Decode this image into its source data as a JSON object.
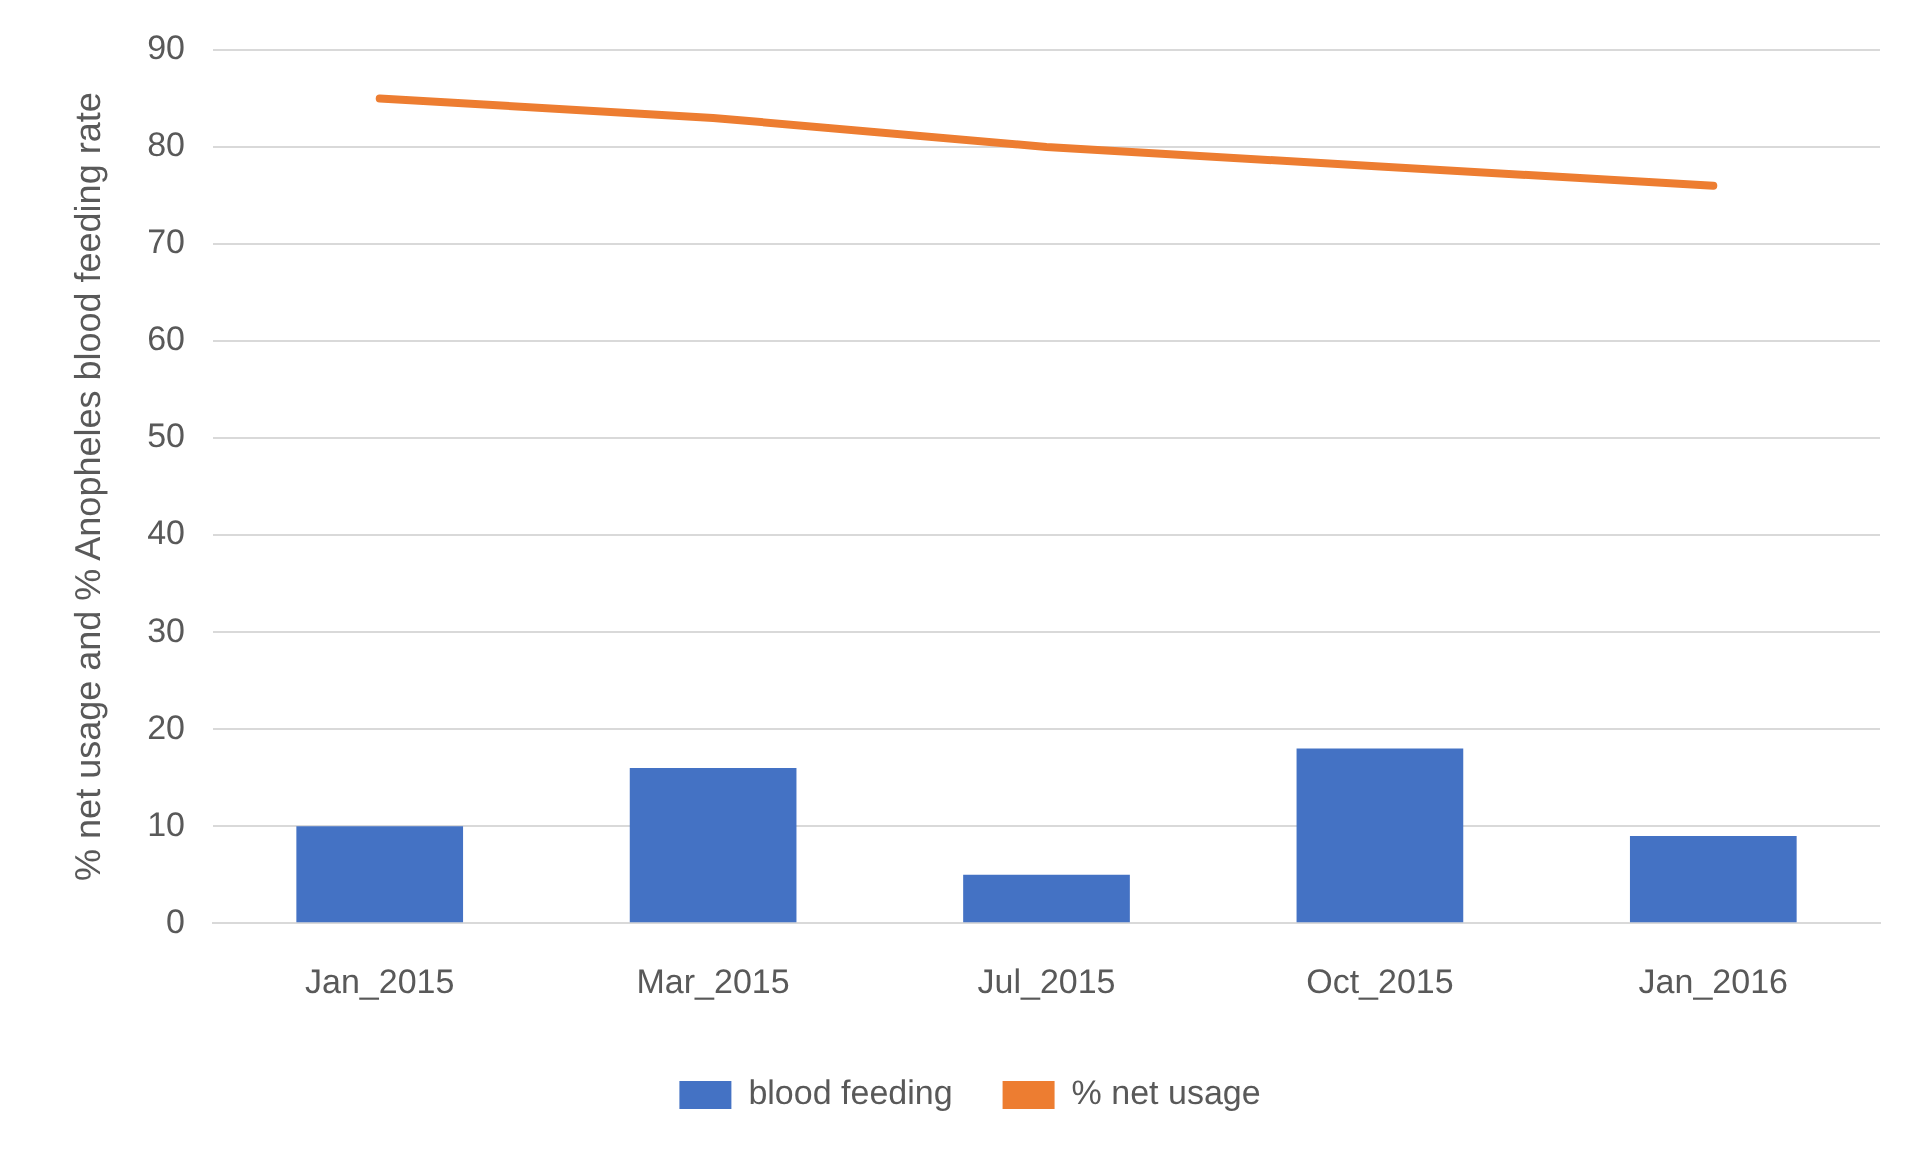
{
  "chart_data": {
    "type": "bar",
    "ylabel": "% net usage and % Anopheles blood feeding rate",
    "categories": [
      "Jan_2015",
      "Mar_2015",
      "Jul_2015",
      "Oct_2015",
      "Jan_2016"
    ],
    "series": [
      {
        "name": "blood feeding",
        "color": "#4472c4",
        "values": [
          10,
          16,
          5,
          18,
          9
        ]
      },
      {
        "name": "% net usage",
        "type": "line",
        "color": "#ed7d31",
        "values": [
          85,
          83,
          80,
          78,
          76
        ]
      }
    ],
    "ylim": [
      0,
      90
    ],
    "yticks": [
      0,
      10,
      20,
      30,
      40,
      50,
      60,
      70,
      80,
      90
    ],
    "grid": "y",
    "legend": "bottom",
    "marker": "none"
  }
}
